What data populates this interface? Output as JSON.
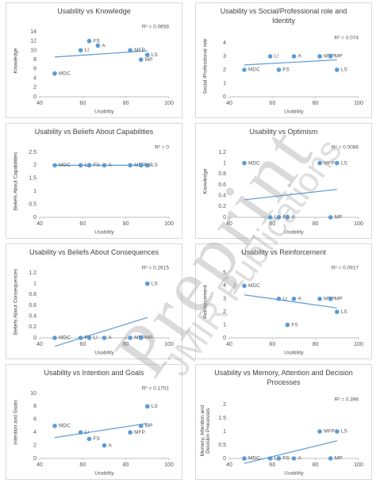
{
  "chart_data": [
    {
      "type": "scatter",
      "title": "Usability vs Knowledge",
      "annotation": "R² = 0.0658",
      "x_label": "Usability",
      "y_label": "Knowledge",
      "x": [
        47,
        59,
        63,
        67,
        82,
        90,
        87
      ],
      "y": [
        5,
        10,
        12,
        11,
        10,
        9,
        8
      ],
      "labels": [
        "MDC",
        "LI",
        "FS",
        "A",
        "MFP",
        "LS",
        "MP"
      ],
      "color": "#5b9bd5",
      "xlim": [
        40,
        100
      ],
      "xticks": [
        40,
        60,
        80,
        100
      ],
      "ylim": [
        0,
        14
      ],
      "yticks": [
        0,
        2,
        4,
        6,
        8,
        10,
        12,
        14
      ],
      "grid": false,
      "trendline": true
    },
    {
      "type": "scatter",
      "title": "Usability vs Social/Professional role and Identity",
      "annotation": "R² = 0.074",
      "x_label": "Usability",
      "y_label": "Social /Professional role",
      "x": [
        47,
        59,
        63,
        70,
        82,
        87,
        90
      ],
      "y": [
        2,
        3,
        2,
        3,
        3,
        3,
        2
      ],
      "labels": [
        "MDC",
        "LI",
        "FS",
        "A",
        "MFP",
        "MP",
        "LS"
      ],
      "color": "#5b9bd5",
      "xlim": [
        40,
        100
      ],
      "xticks": [
        40,
        60,
        80,
        100
      ],
      "ylim": [
        0,
        4
      ],
      "yticks": [
        0,
        1,
        2,
        3,
        4
      ],
      "grid": false,
      "trendline": true
    },
    {
      "type": "scatter",
      "title": "Usability vs Beliefs About Capabilities",
      "annotation": "R² = 0",
      "x_label": "Usability",
      "y_label": "Beliefs About Capabilities",
      "x": [
        47,
        59,
        63,
        70,
        82,
        87,
        90
      ],
      "y": [
        2,
        2,
        2,
        2,
        2,
        2,
        2
      ],
      "labels": [
        "MDC",
        "LI",
        "FS",
        "A",
        "MFP",
        "MP",
        "LS"
      ],
      "color": "#5b9bd5",
      "xlim": [
        40,
        100
      ],
      "xticks": [
        40,
        60,
        80,
        100
      ],
      "ylim": [
        0,
        2.5
      ],
      "yticks": [
        0,
        0.5,
        1,
        1.5,
        2,
        2.5
      ],
      "grid": false,
      "trendline": true
    },
    {
      "type": "scatter",
      "title": "Usability vs Optimism",
      "annotation": "R² = 0.0086",
      "x_label": "Usability",
      "y_label": "Knowledge",
      "x": [
        47,
        59,
        63,
        67,
        82,
        90,
        87
      ],
      "y": [
        1,
        0,
        0,
        0,
        1,
        1,
        0
      ],
      "labels": [
        "MDC",
        "LI",
        "FS",
        "A",
        "MFP",
        "LS",
        "MP"
      ],
      "color": "#5b9bd5",
      "xlim": [
        40,
        100
      ],
      "xticks": [
        40,
        60,
        80,
        100
      ],
      "ylim": [
        0,
        1.2
      ],
      "yticks": [
        0,
        0.2,
        0.4,
        0.6,
        0.8,
        1,
        1.2
      ],
      "grid": false,
      "trendline": true
    },
    {
      "type": "scatter",
      "title": "Usability vs Beliefs About Consequences",
      "annotation": "R² = 0.2615",
      "x_label": "Usability",
      "y_label": "Beliefs About Consequences",
      "x": [
        47,
        59,
        63,
        70,
        82,
        87,
        90
      ],
      "y": [
        0,
        0,
        0,
        0,
        0,
        0,
        1
      ],
      "labels": [
        "MDC",
        "FS",
        "LI",
        "A",
        "MFP",
        "MP",
        "LS"
      ],
      "color": "#5b9bd5",
      "xlim": [
        40,
        100
      ],
      "xticks": [
        40,
        60,
        80,
        100
      ],
      "ylim": [
        0,
        1.2
      ],
      "yticks": [
        0,
        0.2,
        0.4,
        0.6,
        0.8,
        1,
        1.2
      ],
      "grid": false,
      "trendline": true
    },
    {
      "type": "scatter",
      "title": "Usability vs Reinforcement",
      "annotation": "R² = 0.0917",
      "x_label": "Usability",
      "y_label": "Reinforcement",
      "x": [
        47,
        63,
        70,
        82,
        87,
        67,
        90
      ],
      "y": [
        4,
        3,
        3,
        3,
        3,
        1,
        2
      ],
      "labels": [
        "MDC",
        "LI",
        "A",
        "MFP",
        "MP",
        "FS",
        "LS"
      ],
      "color": "#5b9bd5",
      "xlim": [
        40,
        100
      ],
      "xticks": [
        40,
        60,
        80,
        100
      ],
      "ylim": [
        0,
        5
      ],
      "yticks": [
        0,
        1,
        2,
        3,
        4,
        5
      ],
      "grid": false,
      "trendline": true
    },
    {
      "type": "scatter",
      "title": "Usability vs Intention and Goals",
      "annotation": "R² = 0.1701",
      "x_label": "Usability",
      "y_label": "Intention and Goals",
      "x": [
        47,
        59,
        63,
        70,
        82,
        87,
        90
      ],
      "y": [
        5,
        4,
        3,
        2,
        4,
        5,
        8
      ],
      "labels": [
        "MDC",
        "LI",
        "FS",
        "A",
        "MFP",
        "MP",
        "LS"
      ],
      "color": "#5b9bd5",
      "xlim": [
        40,
        100
      ],
      "xticks": [
        40,
        60,
        80,
        100
      ],
      "ylim": [
        0,
        10
      ],
      "yticks": [
        0,
        2,
        4,
        6,
        8,
        10
      ],
      "grid": false,
      "trendline": true
    },
    {
      "type": "scatter",
      "title": "Usability vs Memory, Attention and Decision Processes",
      "annotation": "R² = 0.396",
      "x_label": "Usability",
      "y_label": "Memory, Attention and Decision Processes",
      "x": [
        47,
        59,
        63,
        70,
        82,
        90,
        87
      ],
      "y": [
        0,
        0,
        0,
        0,
        1,
        1,
        0
      ],
      "labels": [
        "MDC",
        "LI",
        "FS",
        "A",
        "MFP",
        "LS",
        "MP"
      ],
      "color": "#5b9bd5",
      "xlim": [
        40,
        100
      ],
      "xticks": [
        40,
        60,
        80,
        100
      ],
      "ylim": [
        0,
        2
      ],
      "yticks": [
        0,
        0.5,
        1,
        1.5,
        2
      ],
      "grid": false,
      "trendline": true
    }
  ],
  "watermark": {
    "text": "Preprint",
    "publisher": "JMIR Publications"
  }
}
